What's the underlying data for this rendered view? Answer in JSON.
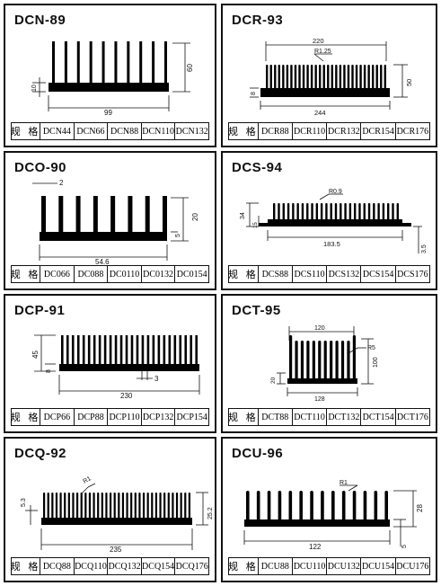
{
  "spec_label": "规 格",
  "panels": [
    {
      "title": "DCN-89",
      "dims": {
        "width": "99",
        "height": "60",
        "base": "10"
      },
      "models": [
        "DCN44",
        "DCN66",
        "DCN88",
        "DCN110",
        "DCN132"
      ]
    },
    {
      "title": "DCR-93",
      "dims": {
        "top": "220",
        "bottom": "244",
        "height": "50",
        "base": "8",
        "radius": "R1.25"
      },
      "models": [
        "DCR88",
        "DCR110",
        "DCR132",
        "DCR154",
        "DCR176"
      ]
    },
    {
      "title": "DCO-90",
      "dims": {
        "fin": "2",
        "width": "54.6",
        "height": "20",
        "base": "5"
      },
      "models": [
        "DC066",
        "DC088",
        "DC0110",
        "DC0132",
        "DC0154"
      ]
    },
    {
      "title": "DCS-94",
      "dims": {
        "radius": "R0.9",
        "width": "183.5",
        "height": "34",
        "step": "15",
        "base": "3.5"
      },
      "models": [
        "DCS88",
        "DCS110",
        "DCS132",
        "DCS154",
        "DCS176"
      ]
    },
    {
      "title": "DCP-91",
      "dims": {
        "width": "230",
        "height": "45",
        "base": "8",
        "gap": "3"
      },
      "models": [
        "DCP66",
        "DCP88",
        "DCP110",
        "DCP132",
        "DCP154"
      ]
    },
    {
      "title": "DCT-95",
      "dims": {
        "top": "120",
        "bottom": "128",
        "height": "100",
        "base": "20",
        "radius": "R5"
      },
      "models": [
        "DCT88",
        "DCT110",
        "DCT132",
        "DCT154",
        "DCT176"
      ]
    },
    {
      "title": "DCQ-92",
      "dims": {
        "radius": "R1",
        "width": "235",
        "height": "25.2",
        "base": "5.3"
      },
      "models": [
        "DCQ88",
        "DCQ110",
        "DCQ132",
        "DCQ154",
        "DCQ176"
      ]
    },
    {
      "title": "DCU-96",
      "dims": {
        "radius": "R1",
        "width": "122",
        "height": "28",
        "base": "5"
      },
      "models": [
        "DCU88",
        "DCU110",
        "DCU132",
        "DCU154",
        "DCU176"
      ]
    }
  ],
  "colors": {
    "ink": "#111111",
    "fill": "#000000",
    "paper": "#ffffff"
  }
}
